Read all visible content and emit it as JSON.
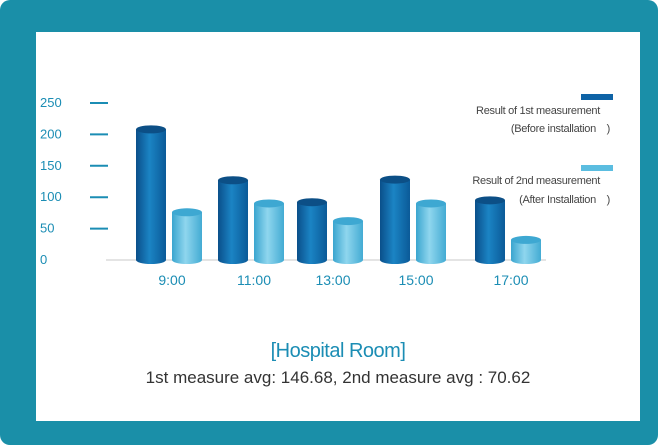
{
  "chart_data": {
    "type": "bar",
    "categories": [
      "9:00",
      "11:00",
      "13:00",
      "15:00",
      "17:00"
    ],
    "series": [
      {
        "name": "Result of 1st measurement",
        "subname": "(Before installation　)",
        "color": "#0e63a6",
        "values": [
          208,
          127,
          92,
          128,
          95
        ]
      },
      {
        "name": "Result of 2nd measurement",
        "subname": "(After Installation　)",
        "color": "#5bbde0",
        "values": [
          76,
          90,
          62,
          90,
          32
        ]
      }
    ],
    "yticks": [
      0,
      50,
      100,
      150,
      200,
      250
    ],
    "ylim": [
      0,
      250
    ],
    "legend_position": "right",
    "grid": false
  },
  "caption": {
    "title": "[Hospital Room]",
    "subtitle": "1st measure avg: 146.68, 2nd measure avg : 70.62"
  }
}
